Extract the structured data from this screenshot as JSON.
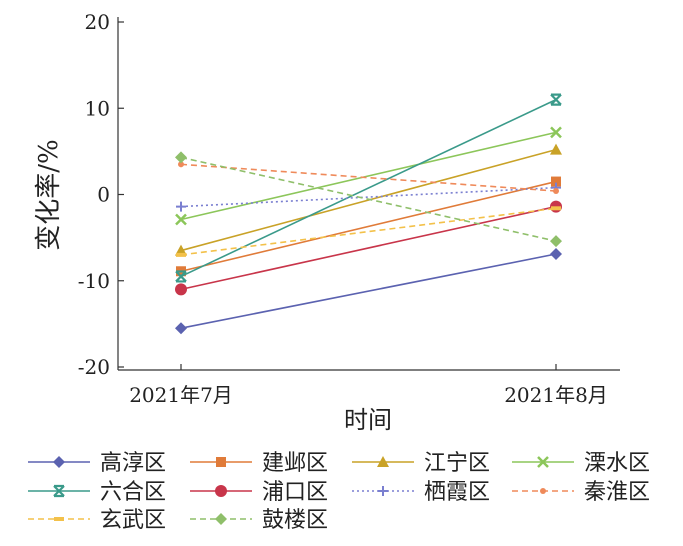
{
  "chart_data": {
    "type": "line",
    "title": "",
    "xlabel": "时间",
    "ylabel": "变化率/%",
    "categories": [
      "2021年7月",
      "2021年8月"
    ],
    "ylim": [
      -20,
      20
    ],
    "yticks": [
      20,
      10,
      0,
      -10,
      -20
    ],
    "grid": false,
    "legend_position": "bottom",
    "series": [
      {
        "name": "高淳区",
        "values": [
          -15.5,
          -6.9
        ],
        "color": "#5b62b0",
        "marker": "diamond",
        "dash": "solid"
      },
      {
        "name": "建邺区",
        "values": [
          -8.9,
          1.5
        ],
        "color": "#e07b39",
        "marker": "square",
        "dash": "solid"
      },
      {
        "name": "江宁区",
        "values": [
          -6.5,
          5.2
        ],
        "color": "#c9a227",
        "marker": "triangle",
        "dash": "solid"
      },
      {
        "name": "溧水区",
        "values": [
          -2.9,
          7.2
        ],
        "color": "#8cc65a",
        "marker": "x",
        "dash": "solid"
      },
      {
        "name": "六合区",
        "values": [
          -9.5,
          11.0
        ],
        "color": "#3a9a8a",
        "marker": "xbar",
        "dash": "solid"
      },
      {
        "name": "浦口区",
        "values": [
          -11.0,
          -1.4
        ],
        "color": "#c8354a",
        "marker": "circle",
        "dash": "solid"
      },
      {
        "name": "栖霞区",
        "values": [
          -1.4,
          0.8
        ],
        "color": "#7a7fd0",
        "marker": "plus",
        "dash": "dot"
      },
      {
        "name": "秦淮区",
        "values": [
          3.5,
          0.4
        ],
        "color": "#ef8a5a",
        "marker": "dot",
        "dash": "dash"
      },
      {
        "name": "玄武区",
        "values": [
          -7.0,
          -1.6
        ],
        "color": "#f3c14a",
        "marker": "dash",
        "dash": "dash"
      },
      {
        "name": "鼓楼区",
        "values": [
          4.3,
          -5.4
        ],
        "color": "#8fbf6a",
        "marker": "diamond",
        "dash": "dash"
      }
    ]
  }
}
